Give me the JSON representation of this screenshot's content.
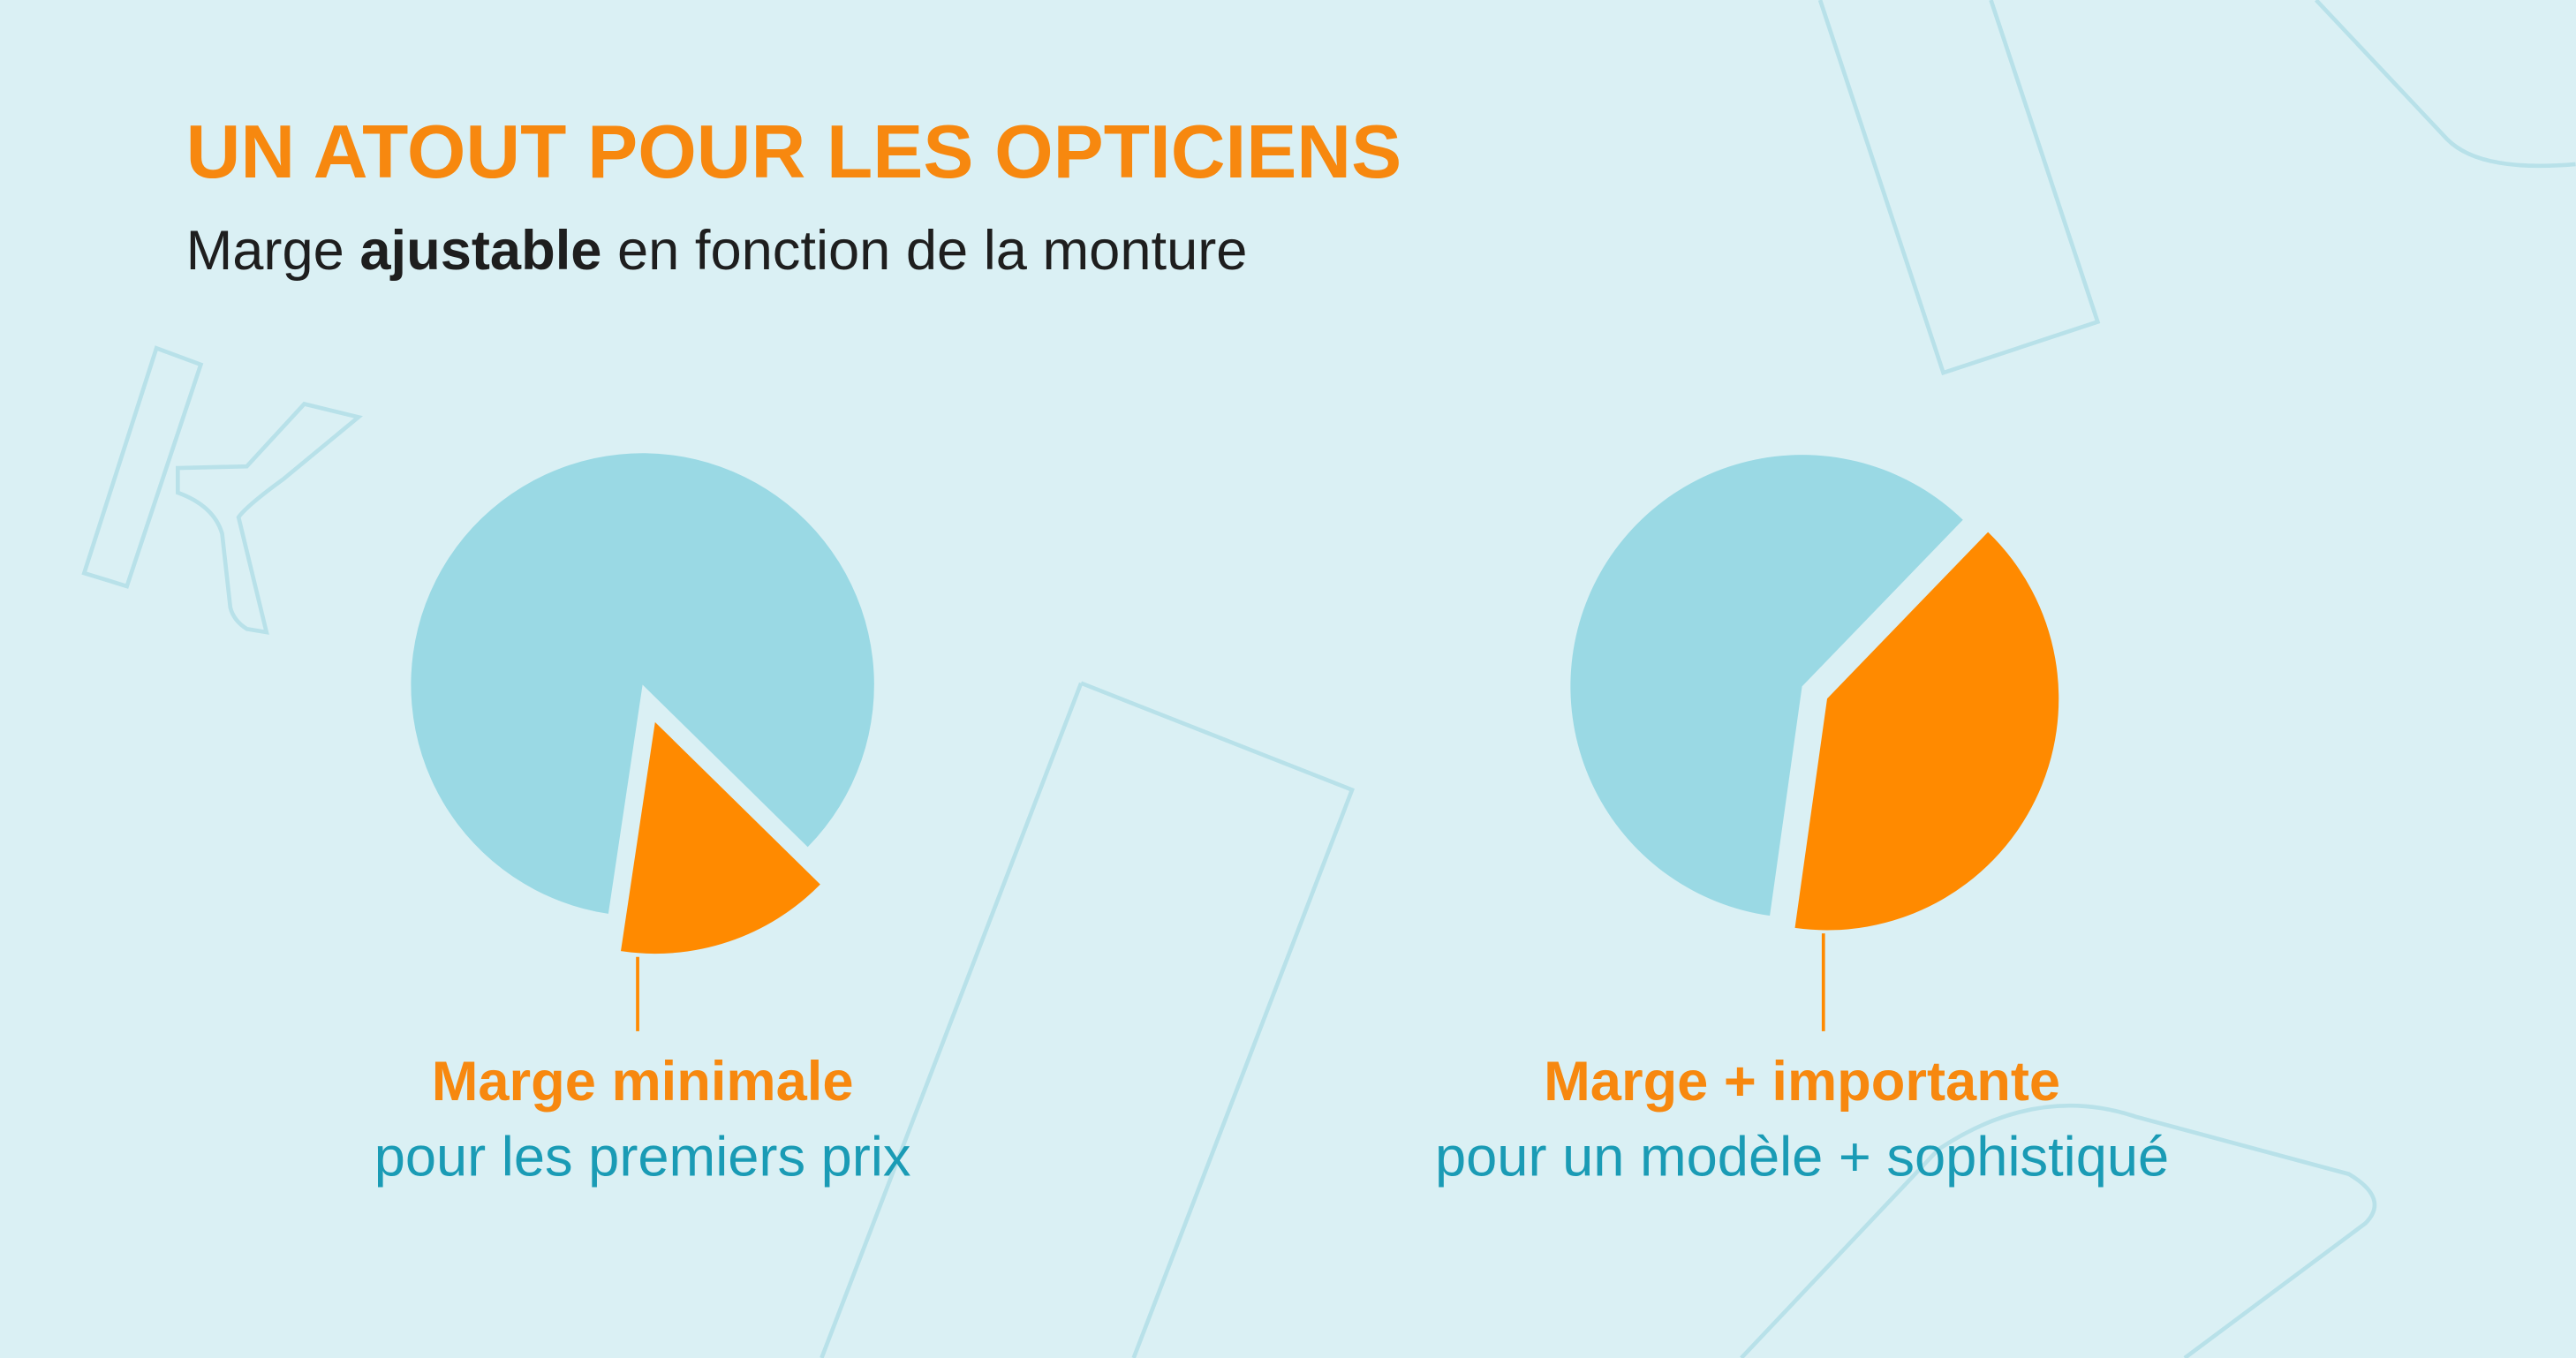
{
  "header": {
    "title": "UN ATOUT POUR LES OPTICIENS",
    "subtitle": [
      "Marge ",
      "ajustable",
      " en fonction de la monture"
    ]
  },
  "chart_data": [
    {
      "type": "pie",
      "values": [
        15,
        85
      ],
      "colors": [
        "#ff8a00",
        "#9ad9e4"
      ],
      "annotation": {
        "title": "Marge minimale",
        "text": "pour les premiers prix"
      }
    },
    {
      "type": "pie",
      "values": [
        40,
        60
      ],
      "colors": [
        "#ff8a00",
        "#9ad9e4"
      ],
      "annotation": {
        "title": "Marge + importante",
        "text": "pour un modèle + sophistiqué"
      }
    }
  ]
}
